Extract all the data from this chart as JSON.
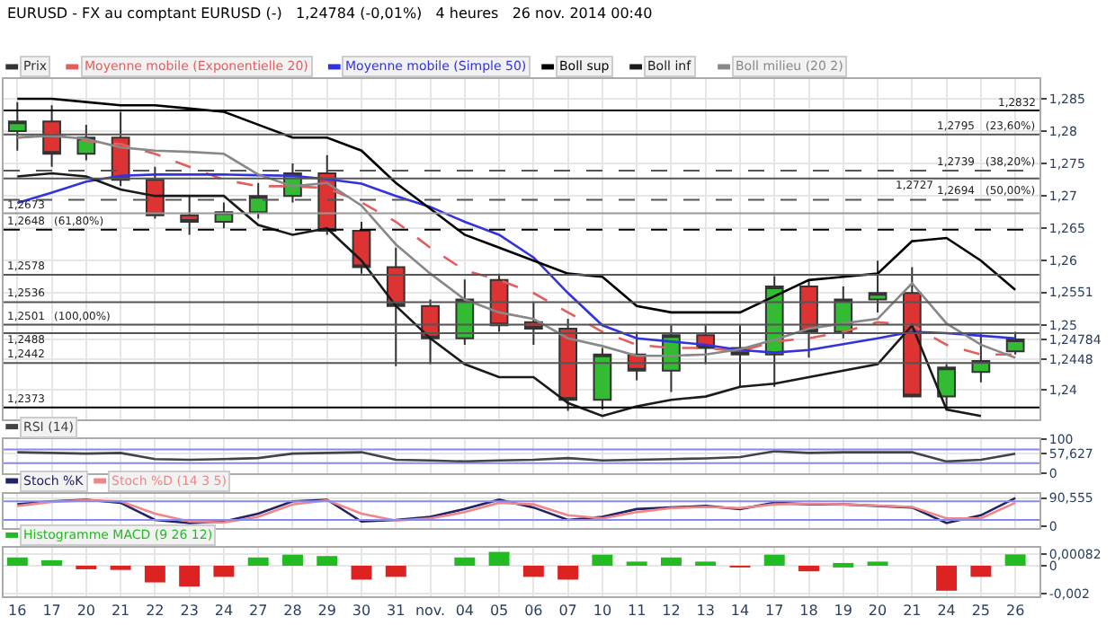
{
  "chart_data": [
    {
      "type": "candlestick",
      "title": "EURUSD - FX au comptant EURUSD (-)   1,24784 (-0,01%)   4 heures   26 nov. 2014 00:40",
      "categories": [
        "16",
        "17",
        "20",
        "21",
        "22",
        "23",
        "24",
        "27",
        "28",
        "29",
        "30",
        "31",
        "nov.",
        "04",
        "05",
        "06",
        "07",
        "10",
        "11",
        "12",
        "13",
        "14",
        "17",
        "18",
        "19",
        "20",
        "21",
        "24",
        "25",
        "26"
      ],
      "ohlc": [
        [
          1.28,
          1.2845,
          1.277,
          1.2815
        ],
        [
          1.2815,
          1.284,
          1.2745,
          1.2765
        ],
        [
          1.2765,
          1.281,
          1.2755,
          1.279
        ],
        [
          1.279,
          1.283,
          1.2715,
          1.2725
        ],
        [
          1.2725,
          1.2745,
          1.2665,
          1.267
        ],
        [
          1.267,
          1.27,
          1.264,
          1.266
        ],
        [
          1.266,
          1.269,
          1.265,
          1.2675
        ],
        [
          1.2675,
          1.272,
          1.2665,
          1.27
        ],
        [
          1.27,
          1.275,
          1.269,
          1.2735
        ],
        [
          1.2735,
          1.2763,
          1.264,
          1.2646
        ],
        [
          1.2646,
          1.266,
          1.258,
          1.259
        ],
        [
          1.259,
          1.262,
          1.2437,
          1.253
        ],
        [
          1.253,
          1.254,
          1.244,
          1.248
        ],
        [
          1.248,
          1.2571,
          1.247,
          1.254
        ],
        [
          1.257,
          1.258,
          1.249,
          1.25
        ],
        [
          1.2505,
          1.2535,
          1.247,
          1.2495
        ],
        [
          1.2495,
          1.251,
          1.2368,
          1.2385
        ],
        [
          1.2385,
          1.2465,
          1.237,
          1.2455
        ],
        [
          1.2455,
          1.249,
          1.2415,
          1.243
        ],
        [
          1.243,
          1.25,
          1.2397,
          1.2485
        ],
        [
          1.2485,
          1.25,
          1.244,
          1.2465
        ],
        [
          1.2465,
          1.25,
          1.2405,
          1.2455
        ],
        [
          1.2455,
          1.2576,
          1.2405,
          1.256
        ],
        [
          1.256,
          1.257,
          1.245,
          1.249
        ],
        [
          1.249,
          1.256,
          1.248,
          1.254
        ],
        [
          1.254,
          1.26,
          1.252,
          1.255
        ],
        [
          1.255,
          1.259,
          1.239,
          1.239
        ],
        [
          1.239,
          1.244,
          1.2373,
          1.2435
        ],
        [
          1.2428,
          1.2487,
          1.2412,
          1.2445
        ],
        [
          1.246,
          1.249,
          1.2455,
          1.24784
        ]
      ],
      "annotations": [
        "Prix",
        {
          "text": "(23,60%)",
          "y": 1.2795
        },
        {
          "text": "(38,20%)",
          "y": 1.2739
        },
        {
          "text": "(50,00%)",
          "y": 1.2694
        },
        {
          "text": "(61,80%)",
          "y": 1.2648
        },
        {
          "text": "(100,00%)",
          "y": 1.2501
        }
      ],
      "colors": [
        "#33bb33",
        "#dd3333",
        "#33bb33",
        "#dd3333",
        "#dd3333",
        "#dd3333",
        "#33bb33",
        "#33bb33",
        "#33bb33",
        "#dd3333",
        "#dd3333",
        "#dd3333",
        "#dd3333",
        "#33bb33",
        "#dd3333",
        "#dd3333",
        "#dd3333",
        "#33bb33",
        "#dd3333",
        "#33bb33",
        "#dd3333",
        "#dd3333",
        "#33bb33",
        "#dd3333",
        "#33bb33",
        "#33bb33",
        "#dd3333",
        "#33bb33",
        "#33bb33",
        "#33bb33"
      ],
      "series": [
        {
          "type": "line",
          "name": "Moyenne mobile (Exponentielle 20)",
          "color": "#e06060",
          "line_style": "dashed",
          "values": [
            1.279,
            1.2795,
            1.2785,
            1.278,
            1.2765,
            1.2745,
            1.2725,
            1.2715,
            1.2715,
            1.2712,
            1.269,
            1.266,
            1.262,
            1.2585,
            1.257,
            1.255,
            1.252,
            1.249,
            1.247,
            1.2465,
            1.2465,
            1.246,
            1.2475,
            1.248,
            1.249,
            1.2505,
            1.25,
            1.247,
            1.2455,
            1.2455
          ]
        },
        {
          "type": "line",
          "name": "Moyenne mobile (Simple 50)",
          "color": "#3333dd",
          "line_style": "solid",
          "values": [
            1.2689,
            1.2705,
            1.2722,
            1.2731,
            1.2733,
            1.2733,
            1.2733,
            1.2732,
            1.2731,
            1.2726,
            1.2719,
            1.27,
            1.2683,
            1.266,
            1.264,
            1.2605,
            1.255,
            1.25,
            1.248,
            1.2475,
            1.247,
            1.2462,
            1.2458,
            1.2462,
            1.2471,
            1.248,
            1.249,
            1.2488,
            1.2484,
            1.248
          ]
        },
        {
          "type": "line",
          "name": "Boll sup",
          "color": "#000000",
          "line_style": "solid",
          "values": [
            1.285,
            1.285,
            1.2845,
            1.284,
            1.284,
            1.2835,
            1.283,
            1.281,
            1.279,
            1.279,
            1.277,
            1.272,
            1.268,
            1.264,
            1.262,
            1.26,
            1.258,
            1.2575,
            1.253,
            1.252,
            1.252,
            1.252,
            1.2545,
            1.257,
            1.2575,
            1.258,
            1.263,
            1.2635,
            1.26,
            1.2555
          ]
        },
        {
          "type": "line",
          "name": "Boll inf",
          "color": "#1a1a1a",
          "line_style": "solid",
          "values": [
            1.273,
            1.2735,
            1.273,
            1.271,
            1.27,
            1.27,
            1.27,
            1.2655,
            1.264,
            1.265,
            1.26,
            1.253,
            1.248,
            1.244,
            1.242,
            1.242,
            1.238,
            1.236,
            1.2375,
            1.2385,
            1.239,
            1.2405,
            1.241,
            1.242,
            1.243,
            1.244,
            1.25,
            1.237,
            1.236,
            null
          ]
        },
        {
          "type": "line",
          "name": "Boll milieu (20 2)",
          "color": "#888888",
          "line_style": "solid",
          "values": [
            1.279,
            1.2793,
            1.2788,
            1.2775,
            1.277,
            1.2768,
            1.2765,
            1.2733,
            1.2715,
            1.272,
            1.2685,
            1.2625,
            1.258,
            1.254,
            1.252,
            1.251,
            1.248,
            1.2468,
            1.2453,
            1.2453,
            1.2455,
            1.2463,
            1.2478,
            1.2495,
            1.2503,
            1.251,
            1.2565,
            1.2503,
            1.247,
            1.245
          ]
        }
      ],
      "ylim": [
        1.2355,
        1.288
      ],
      "yticks": [
        {
          "value": 1.285,
          "label": "1,285"
        },
        {
          "value": 1.28,
          "label": "1,28"
        },
        {
          "value": 1.275,
          "label": "1,275"
        },
        {
          "value": 1.27,
          "label": "1,27"
        },
        {
          "value": 1.265,
          "label": "1,265"
        },
        {
          "value": 1.26,
          "label": "1,26"
        },
        {
          "value": 1.2551,
          "label": "1,2551"
        },
        {
          "value": 1.25,
          "label": "1,25"
        },
        {
          "value": 1.24784,
          "label": "1,24784"
        },
        {
          "value": 1.2448,
          "label": "1,2448"
        },
        {
          "value": 1.24,
          "label": "1,24"
        }
      ],
      "ref_lines": [
        {
          "axis": "y",
          "value": 1.2832,
          "label": "1,2832",
          "color": "#000000",
          "line_style": "solid"
        },
        {
          "axis": "y",
          "value": 1.2795,
          "label": "1,2795",
          "color": "#555555",
          "line_style": "solid"
        },
        {
          "axis": "y",
          "value": 1.2739,
          "label": "1,2739",
          "color": "#555555",
          "line_style": "dashed"
        },
        {
          "axis": "y",
          "value": 1.2727,
          "label": "1,2727",
          "color": "#555555",
          "line_style": "solid"
        },
        {
          "axis": "y",
          "value": 1.2694,
          "label": "1,2694",
          "color": "#555555",
          "line_style": "dashed"
        },
        {
          "axis": "y",
          "value": 1.2673,
          "label": "1,2673",
          "color": "#999999",
          "line_style": "solid"
        },
        {
          "axis": "y",
          "value": 1.2648,
          "label": "1,2648",
          "color": "#000000",
          "line_style": "dashed"
        },
        {
          "axis": "y",
          "value": 1.2578,
          "label": "1,2578",
          "color": "#555555",
          "line_style": "solid"
        },
        {
          "axis": "y",
          "value": 1.2536,
          "label": "1,2536",
          "color": "#555555",
          "line_style": "solid"
        },
        {
          "axis": "y",
          "value": 1.2501,
          "label": "1,2501",
          "color": "#555555",
          "line_style": "solid"
        },
        {
          "axis": "y",
          "value": 1.2488,
          "label": "1,2488",
          "color": "#555555",
          "line_style": "solid"
        },
        {
          "axis": "y",
          "value": 1.2442,
          "label": "1,2442",
          "color": "#555555",
          "line_style": "solid"
        },
        {
          "axis": "y",
          "value": 1.2373,
          "label": "1,2373",
          "color": "#000000",
          "line_style": "solid"
        }
      ],
      "grid": true,
      "tick_labels": "y",
      "legend": "top left"
    },
    {
      "type": "line",
      "categories": [
        "16",
        "17",
        "20",
        "21",
        "22",
        "23",
        "24",
        "27",
        "28",
        "29",
        "30",
        "31",
        "nov.",
        "04",
        "05",
        "06",
        "07",
        "10",
        "11",
        "12",
        "13",
        "14",
        "17",
        "18",
        "19",
        "20",
        "21",
        "24",
        "25",
        "26"
      ],
      "series": [
        {
          "name": "RSI (14)",
          "color": "#444444",
          "values": [
            62,
            60,
            58,
            60,
            42,
            40,
            42,
            45,
            58,
            60,
            62,
            40,
            38,
            35,
            38,
            40,
            45,
            38,
            40,
            42,
            44,
            48,
            65,
            60,
            62,
            62,
            62,
            35,
            40,
            57.627
          ]
        }
      ],
      "ylim": [
        0,
        100
      ],
      "yticks": [
        {
          "value": 100,
          "label": "100"
        },
        {
          "value": 57.627,
          "label": "57,627"
        },
        {
          "value": 0,
          "label": "0"
        }
      ],
      "ref_lines": [
        {
          "axis": "y",
          "value": 70,
          "color": "#8888ee"
        },
        {
          "axis": "y",
          "value": 30,
          "color": "#8888ee"
        }
      ],
      "grid": true,
      "tick_labels": "y",
      "legend": "top left"
    },
    {
      "type": "line",
      "categories": [
        "16",
        "17",
        "20",
        "21",
        "22",
        "23",
        "24",
        "27",
        "28",
        "29",
        "30",
        "31",
        "nov.",
        "04",
        "05",
        "06",
        "07",
        "10",
        "11",
        "12",
        "13",
        "14",
        "17",
        "18",
        "19",
        "20",
        "21",
        "24",
        "25",
        "26"
      ],
      "series": [
        {
          "name": "Stoch %K",
          "color": "#222266",
          "values": [
            70,
            80,
            85,
            75,
            20,
            10,
            15,
            40,
            80,
            85,
            15,
            20,
            30,
            55,
            85,
            60,
            20,
            30,
            55,
            60,
            65,
            55,
            75,
            70,
            70,
            65,
            60,
            10,
            35,
            90.555
          ]
        },
        {
          "name": "Stoch %D (14 3 5)",
          "color": "#ee8888",
          "values": [
            65,
            78,
            83,
            80,
            40,
            15,
            12,
            30,
            70,
            83,
            40,
            18,
            25,
            45,
            75,
            70,
            35,
            25,
            45,
            58,
            62,
            58,
            70,
            72,
            70,
            66,
            62,
            25,
            25,
            75
          ]
        }
      ],
      "ylim": [
        -5,
        105
      ],
      "yticks": [
        {
          "value": 90.555,
          "label": "90,555"
        },
        {
          "value": 0,
          "label": "0"
        }
      ],
      "ref_lines": [
        {
          "axis": "y",
          "value": 80,
          "color": "#8888ee"
        },
        {
          "axis": "y",
          "value": 20,
          "color": "#8888ee"
        }
      ],
      "grid": true,
      "tick_labels": "y",
      "legend": "top left"
    },
    {
      "type": "bar",
      "categories": [
        "16",
        "17",
        "20",
        "21",
        "22",
        "23",
        "24",
        "27",
        "28",
        "29",
        "30",
        "31",
        "nov.",
        "04",
        "05",
        "06",
        "07",
        "10",
        "11",
        "12",
        "13",
        "14",
        "17",
        "18",
        "19",
        "20",
        "21",
        "24",
        "25",
        "26"
      ],
      "series": [
        {
          "name": "Histogramme MACD (9 26 12)",
          "colors": [
            "#22bb22",
            "#22bb22",
            "#dd2222",
            "#dd2222",
            "#dd2222",
            "#dd2222",
            "#dd2222",
            "#22bb22",
            "#22bb22",
            "#22bb22",
            "#dd2222",
            "#dd2222",
            "#22bb22",
            "#22bb22",
            "#22bb22",
            "#dd2222",
            "#dd2222",
            "#22bb22",
            "#22bb22",
            "#22bb22",
            "#22bb22",
            "#dd2222",
            "#22bb22",
            "#dd2222",
            "#22bb22",
            "#22bb22",
            "#22bb22",
            "#dd2222",
            "#dd2222",
            "#22bb22"
          ],
          "values": [
            0.0006,
            0.0004,
            -0.0002,
            -0.0003,
            -0.0012,
            -0.0015,
            -0.0008,
            0.0006,
            0.0008,
            0.0007,
            -0.001,
            -0.0008,
            0.0,
            0.0006,
            0.001,
            -0.0008,
            -0.001,
            0.0008,
            0.0003,
            0.0006,
            0.0003,
            -0.0001,
            0.0008,
            -0.0004,
            0.0002,
            0.0003,
            0.0,
            -0.0018,
            -0.0008,
            0.00082
          ]
        }
      ],
      "ylim": [
        -0.0022,
        0.0013
      ],
      "yticks": [
        {
          "value": 0.00082,
          "label": "0,00082"
        },
        {
          "value": 0,
          "label": "0"
        },
        {
          "value": -0.002,
          "label": "-0,002"
        }
      ],
      "grid": true,
      "legend": "top left"
    }
  ]
}
